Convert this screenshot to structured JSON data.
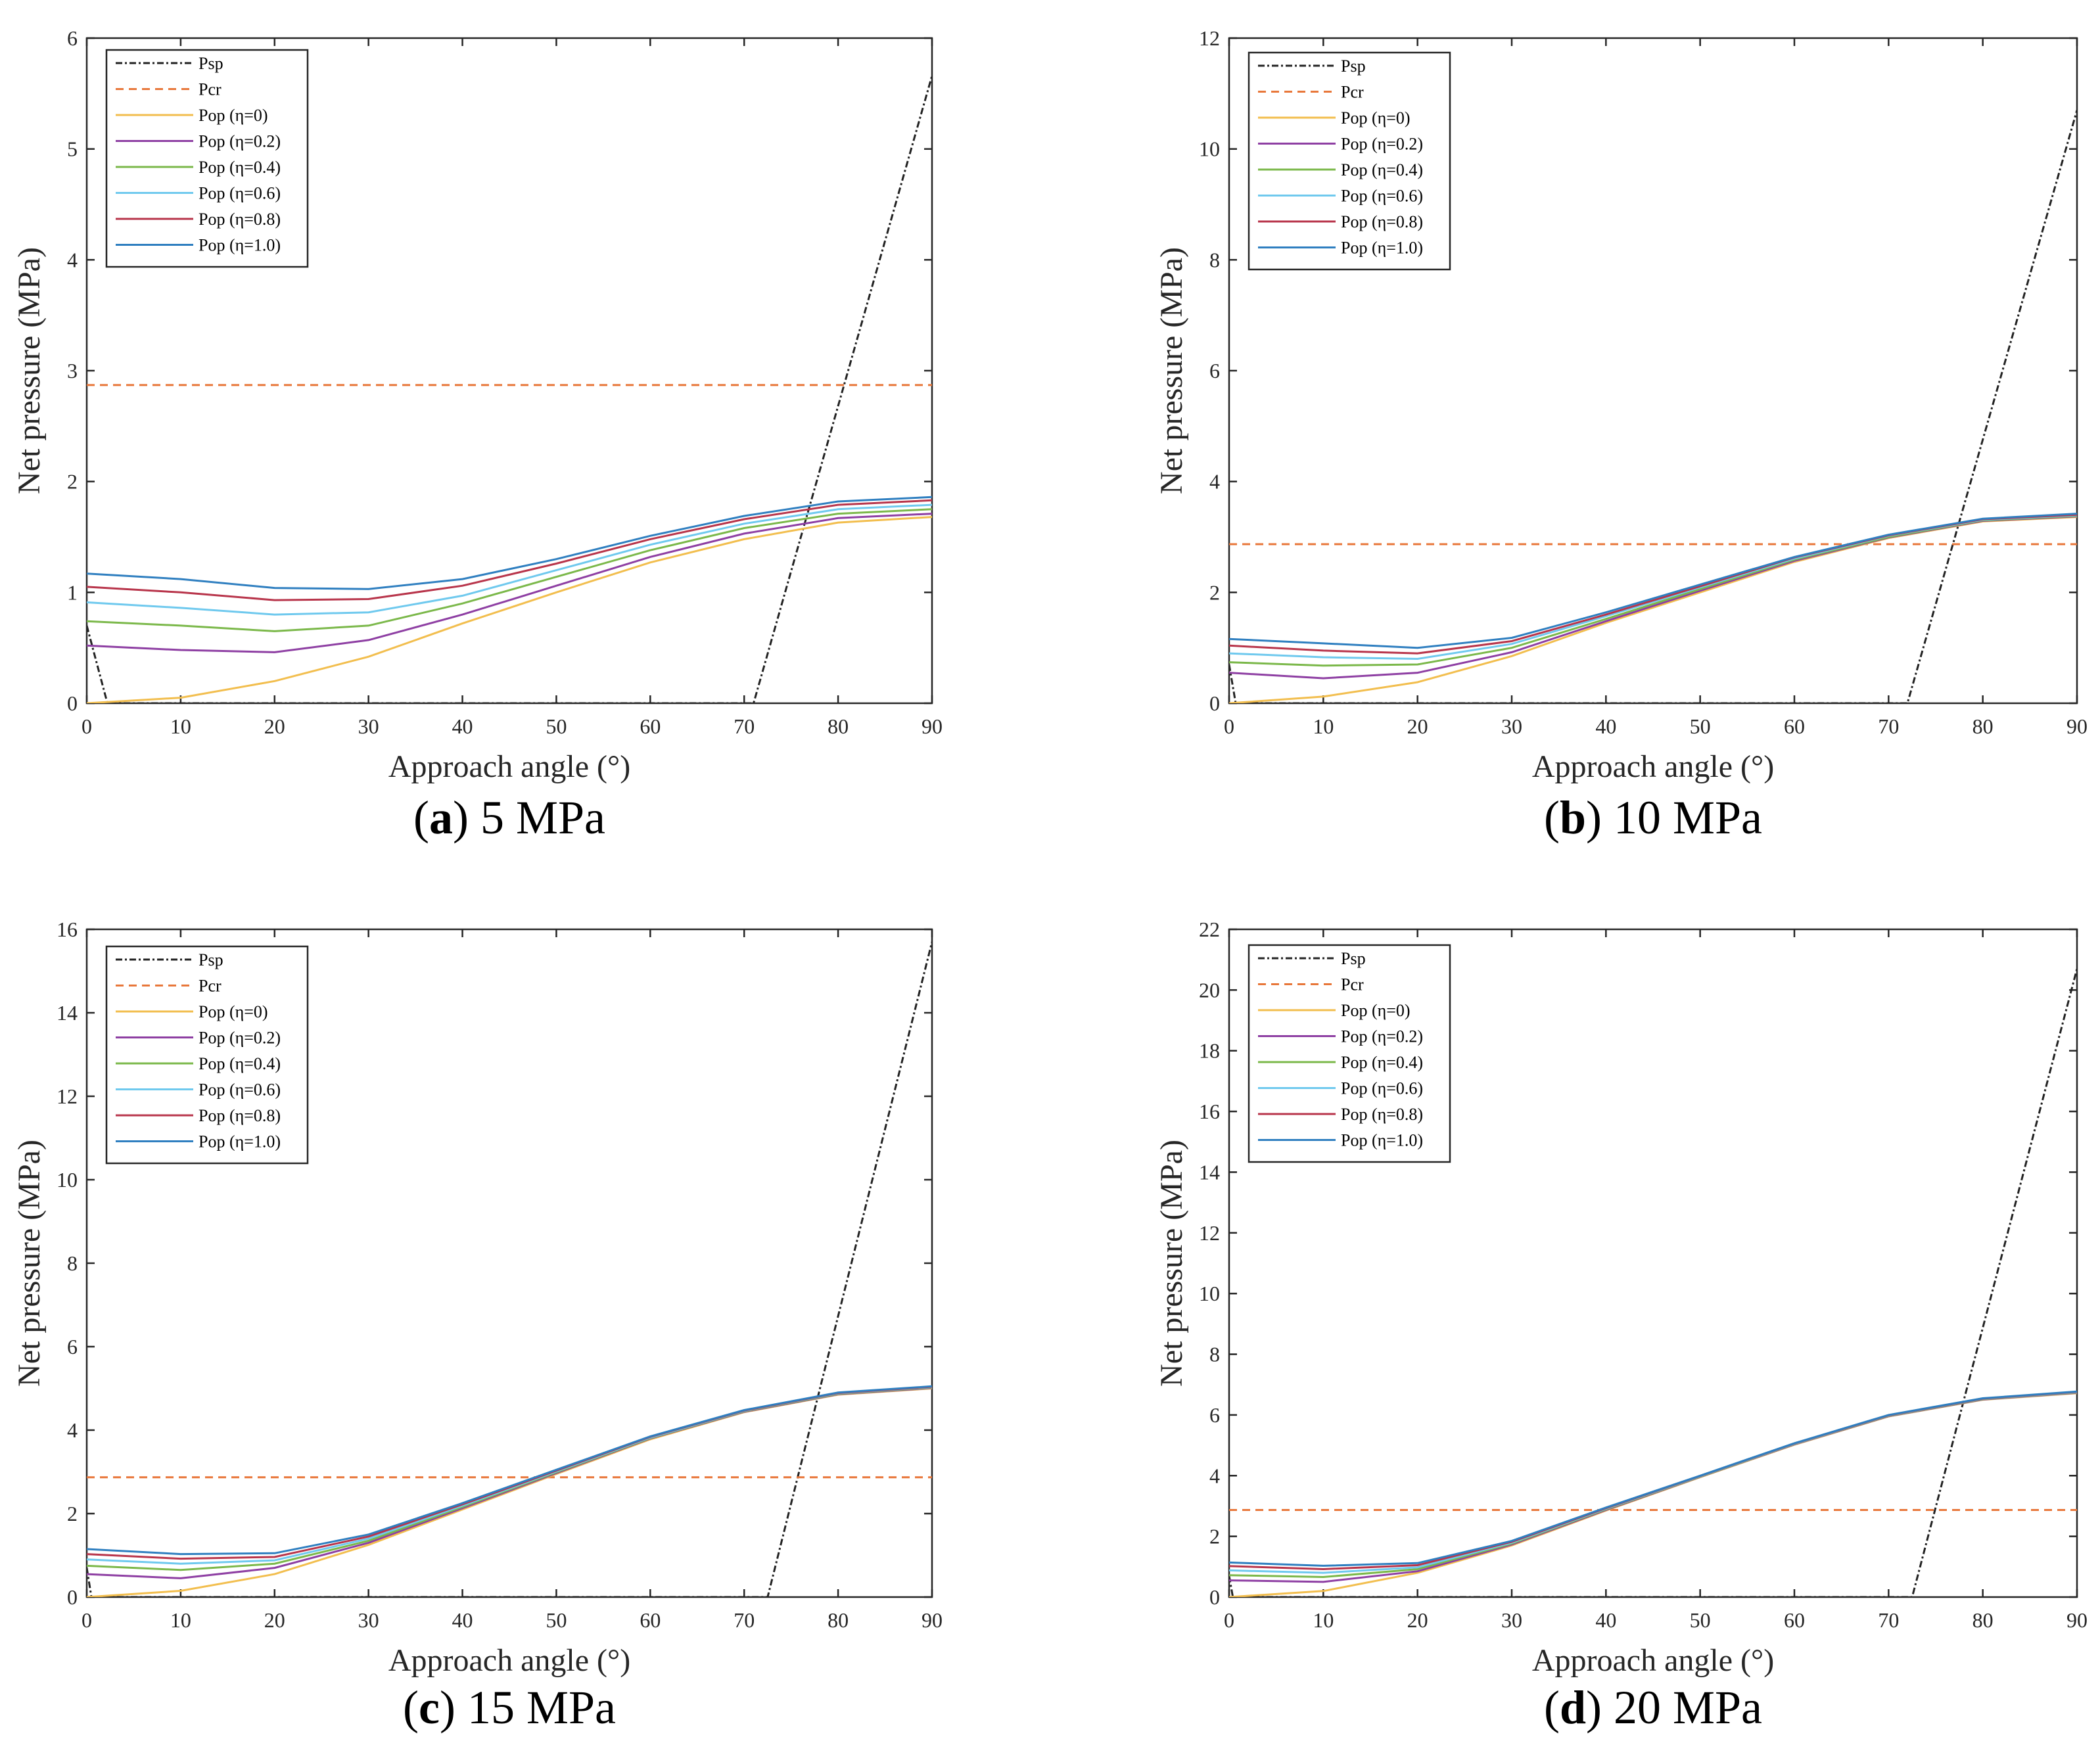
{
  "legend_labels": [
    "Psp",
    "Pcr",
    "Pop (η=0)",
    "Pop (η=0.2)",
    "Pop (η=0.4)",
    "Pop (η=0.6)",
    "Pop (η=0.8)",
    "Pop (η=1.0)"
  ],
  "series_colors": {
    "Psp": "#222222",
    "Pcr": "#E8773A",
    "Pop (η=0)": "#F2BE4E",
    "Pop (η=0.2)": "#8E3FA3",
    "Pop (η=0.4)": "#7BB84A",
    "Pop (η=0.6)": "#6FC9EE",
    "Pop (η=0.8)": "#B8354B",
    "Pop (η=1.0)": "#2F7FC0"
  },
  "chart_data": [
    {
      "type": "line",
      "caption_letter": "a",
      "caption_text": " 5 MPa",
      "xlabel": "Approach angle (°)",
      "ylabel": "Net pressure (MPa)",
      "xlim": [
        0,
        90
      ],
      "ylim": [
        0,
        6
      ],
      "xticks": [
        0,
        10,
        20,
        30,
        40,
        50,
        60,
        70,
        80,
        90
      ],
      "yticks": [
        0,
        1,
        2,
        3,
        4,
        5,
        6
      ],
      "x": [
        0,
        10,
        20,
        30,
        40,
        50,
        60,
        70,
        80,
        90
      ],
      "series": [
        {
          "name": "Psp",
          "points": [
            [
              0,
              0.7
            ],
            [
              2.2,
              0
            ],
            [
              71,
              0
            ],
            [
              90,
              5.66
            ]
          ],
          "style": "dashdot"
        },
        {
          "name": "Pcr",
          "points": [
            [
              0,
              2.87
            ],
            [
              90,
              2.87
            ]
          ],
          "style": "dashed"
        },
        {
          "name": "Pop (η=0)",
          "values": [
            0.0,
            0.05,
            0.2,
            0.42,
            0.72,
            1.0,
            1.27,
            1.48,
            1.63,
            1.68
          ]
        },
        {
          "name": "Pop (η=0.2)",
          "values": [
            0.52,
            0.48,
            0.46,
            0.57,
            0.8,
            1.06,
            1.32,
            1.53,
            1.67,
            1.71
          ]
        },
        {
          "name": "Pop (η=0.4)",
          "values": [
            0.74,
            0.7,
            0.65,
            0.7,
            0.9,
            1.14,
            1.38,
            1.58,
            1.71,
            1.75
          ]
        },
        {
          "name": "Pop (η=0.6)",
          "values": [
            0.91,
            0.86,
            0.8,
            0.82,
            0.97,
            1.2,
            1.43,
            1.62,
            1.75,
            1.79
          ]
        },
        {
          "name": "Pop (η=0.8)",
          "values": [
            1.05,
            1.0,
            0.93,
            0.94,
            1.06,
            1.26,
            1.48,
            1.66,
            1.79,
            1.83
          ]
        },
        {
          "name": "Pop (η=1.0)",
          "values": [
            1.17,
            1.12,
            1.04,
            1.03,
            1.12,
            1.3,
            1.51,
            1.69,
            1.82,
            1.86
          ]
        }
      ]
    },
    {
      "type": "line",
      "caption_letter": "b",
      "caption_text": " 10 MPa",
      "xlabel": "Approach angle (°)",
      "ylabel": "Net pressure (MPa)",
      "xlim": [
        0,
        90
      ],
      "ylim": [
        0,
        12
      ],
      "xticks": [
        0,
        10,
        20,
        30,
        40,
        50,
        60,
        70,
        80,
        90
      ],
      "yticks": [
        0,
        2,
        4,
        6,
        8,
        10,
        12
      ],
      "x": [
        0,
        10,
        20,
        30,
        40,
        50,
        60,
        70,
        80,
        90
      ],
      "series": [
        {
          "name": "Psp",
          "points": [
            [
              0,
              0.7
            ],
            [
              0.7,
              0
            ],
            [
              72,
              0
            ],
            [
              90,
              10.7
            ]
          ],
          "style": "dashdot"
        },
        {
          "name": "Pcr",
          "points": [
            [
              0,
              2.87
            ],
            [
              90,
              2.87
            ]
          ],
          "style": "dashed"
        },
        {
          "name": "Pop (η=0)",
          "values": [
            0.0,
            0.12,
            0.38,
            0.85,
            1.45,
            2.0,
            2.55,
            2.98,
            3.28,
            3.36
          ]
        },
        {
          "name": "Pop (η=0.2)",
          "values": [
            0.55,
            0.45,
            0.55,
            0.92,
            1.48,
            2.03,
            2.57,
            2.99,
            3.29,
            3.37
          ]
        },
        {
          "name": "Pop (η=0.4)",
          "values": [
            0.74,
            0.68,
            0.7,
            1.0,
            1.52,
            2.06,
            2.59,
            3.0,
            3.3,
            3.38
          ]
        },
        {
          "name": "Pop (η=0.6)",
          "values": [
            0.9,
            0.83,
            0.8,
            1.07,
            1.57,
            2.09,
            2.61,
            3.02,
            3.31,
            3.39
          ]
        },
        {
          "name": "Pop (η=0.8)",
          "values": [
            1.04,
            0.95,
            0.9,
            1.12,
            1.6,
            2.11,
            2.63,
            3.03,
            3.32,
            3.4
          ]
        },
        {
          "name": "Pop (η=1.0)",
          "values": [
            1.16,
            1.08,
            1.0,
            1.18,
            1.64,
            2.14,
            2.64,
            3.04,
            3.33,
            3.42
          ]
        }
      ]
    },
    {
      "type": "line",
      "caption_letter": "c",
      "caption_text": " 15 MPa",
      "xlabel": "Approach angle (°)",
      "ylabel": "Net pressure (MPa)",
      "xlim": [
        0,
        90
      ],
      "ylim": [
        0,
        16
      ],
      "xticks": [
        0,
        10,
        20,
        30,
        40,
        50,
        60,
        70,
        80,
        90
      ],
      "yticks": [
        0,
        2,
        4,
        6,
        8,
        10,
        12,
        14,
        16
      ],
      "x": [
        0,
        10,
        20,
        30,
        40,
        50,
        60,
        70,
        80,
        90
      ],
      "series": [
        {
          "name": "Psp",
          "points": [
            [
              0,
              0.7
            ],
            [
              0.5,
              0
            ],
            [
              72.5,
              0
            ],
            [
              90,
              15.7
            ]
          ],
          "style": "dashdot"
        },
        {
          "name": "Pcr",
          "points": [
            [
              0,
              2.87
            ],
            [
              90,
              2.87
            ]
          ],
          "style": "dashed"
        },
        {
          "name": "Pop (η=0)",
          "values": [
            0.0,
            0.15,
            0.55,
            1.25,
            2.1,
            2.95,
            3.78,
            4.43,
            4.85,
            5.0
          ]
        },
        {
          "name": "Pop (η=0.2)",
          "values": [
            0.55,
            0.45,
            0.7,
            1.3,
            2.13,
            2.97,
            3.8,
            4.44,
            4.86,
            5.01
          ]
        },
        {
          "name": "Pop (η=0.4)",
          "values": [
            0.75,
            0.65,
            0.8,
            1.35,
            2.16,
            2.99,
            3.81,
            4.45,
            4.87,
            5.02
          ]
        },
        {
          "name": "Pop (η=0.6)",
          "values": [
            0.9,
            0.8,
            0.88,
            1.4,
            2.19,
            3.01,
            3.82,
            4.46,
            4.88,
            5.03
          ]
        },
        {
          "name": "Pop (η=0.8)",
          "values": [
            1.03,
            0.92,
            0.96,
            1.45,
            2.22,
            3.03,
            3.84,
            4.47,
            4.89,
            5.04
          ]
        },
        {
          "name": "Pop (η=1.0)",
          "values": [
            1.15,
            1.03,
            1.05,
            1.5,
            2.25,
            3.05,
            3.85,
            4.48,
            4.9,
            5.05
          ]
        }
      ]
    },
    {
      "type": "line",
      "caption_letter": "d",
      "caption_text": " 20 MPa",
      "xlabel": "Approach angle (°)",
      "ylabel": "Net pressure (MPa)",
      "xlim": [
        0,
        90
      ],
      "ylim": [
        0,
        22
      ],
      "xticks": [
        0,
        10,
        20,
        30,
        40,
        50,
        60,
        70,
        80,
        90
      ],
      "yticks": [
        0,
        2,
        4,
        6,
        8,
        10,
        12,
        14,
        16,
        18,
        20,
        22
      ],
      "x": [
        0,
        10,
        20,
        30,
        40,
        50,
        60,
        70,
        80,
        90
      ],
      "series": [
        {
          "name": "Psp",
          "points": [
            [
              0,
              0.7
            ],
            [
              0.4,
              0
            ],
            [
              72.5,
              0
            ],
            [
              90,
              20.7
            ]
          ],
          "style": "dashdot"
        },
        {
          "name": "Pcr",
          "points": [
            [
              0,
              2.87
            ],
            [
              90,
              2.87
            ]
          ],
          "style": "dashed"
        },
        {
          "name": "Pop (η=0)",
          "values": [
            0.0,
            0.2,
            0.8,
            1.7,
            2.85,
            3.95,
            5.02,
            5.95,
            6.5,
            6.72
          ]
        },
        {
          "name": "Pop (η=0.2)",
          "values": [
            0.55,
            0.5,
            0.85,
            1.73,
            2.87,
            3.96,
            5.03,
            5.96,
            6.51,
            6.73
          ]
        },
        {
          "name": "Pop (η=0.4)",
          "values": [
            0.72,
            0.66,
            0.92,
            1.76,
            2.89,
            3.97,
            5.04,
            5.97,
            6.52,
            6.74
          ]
        },
        {
          "name": "Pop (η=0.6)",
          "values": [
            0.88,
            0.8,
            0.98,
            1.79,
            2.91,
            3.98,
            5.05,
            5.98,
            6.53,
            6.75
          ]
        },
        {
          "name": "Pop (η=0.8)",
          "values": [
            1.02,
            0.92,
            1.05,
            1.82,
            2.93,
            3.99,
            5.06,
            5.99,
            6.54,
            6.76
          ]
        },
        {
          "name": "Pop (η=1.0)",
          "values": [
            1.14,
            1.03,
            1.12,
            1.85,
            2.95,
            4.0,
            5.07,
            6.0,
            6.55,
            6.77
          ]
        }
      ]
    }
  ]
}
